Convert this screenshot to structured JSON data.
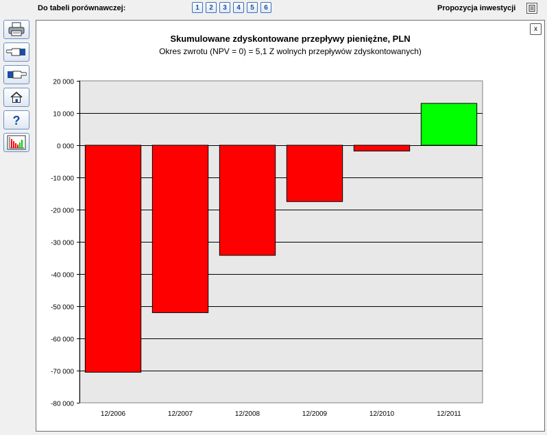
{
  "topbar": {
    "compare_label": "Do tabeli porównawczej:",
    "compare_buttons": [
      "1",
      "2",
      "3",
      "4",
      "5",
      "6"
    ],
    "investment_label": "Propozycja inwestycji",
    "investment_icon": "document-icon"
  },
  "sidebar": {
    "tools": [
      "printer-icon",
      "hand-pointing-left-icon",
      "hand-pointing-right-icon",
      "home-icon",
      "help-icon",
      "chart-icon"
    ]
  },
  "panel": {
    "close_label": "x"
  },
  "colors": {
    "negative_bar": "#ff0000",
    "positive_bar": "#00ff00",
    "plot_background": "#e8e8e8",
    "accent": "#1b4fa0"
  },
  "chart_data": {
    "type": "bar",
    "title": "Skumulowane zdyskontowane przepływy pieniężne,  PLN",
    "subtitle": "Okres zwrotu (NPV = 0) = 5,1 Z wolnych przepływów zdyskontowanych)",
    "categories": [
      "12/2006",
      "12/2007",
      "12/2008",
      "12/2009",
      "12/2010",
      "12/2011"
    ],
    "values": [
      -70500,
      -52000,
      -34200,
      -17500,
      -1800,
      13000
    ],
    "ylim": [
      -80000,
      20000
    ],
    "yticks": [
      20000,
      10000,
      0,
      -10000,
      -20000,
      -30000,
      -40000,
      -50000,
      -60000,
      -70000,
      -80000
    ],
    "ytick_labels": [
      "20 000",
      "10 000",
      "0 000",
      "-10 000",
      "-20 000",
      "-30 000",
      "-40 000",
      "-50 000",
      "-60 000",
      "-70 000",
      "-80 000"
    ],
    "grid": true,
    "legend": "none"
  }
}
